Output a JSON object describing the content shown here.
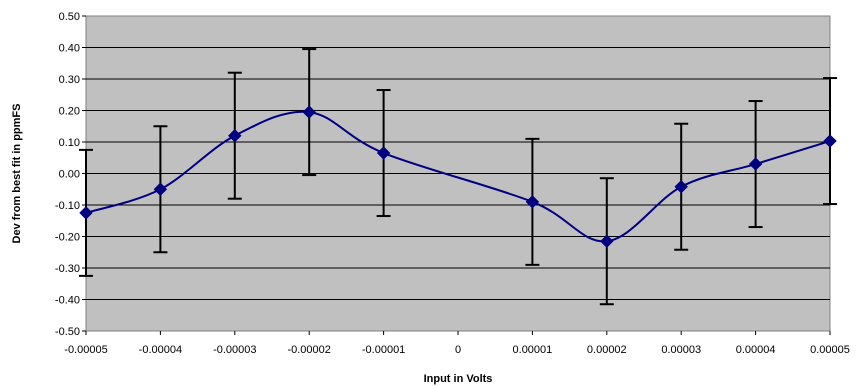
{
  "chart_data": {
    "type": "line",
    "title": "",
    "xlabel": "Input in Volts",
    "ylabel": "Dev from best fit in ppmFS",
    "xlim": [
      -5e-05,
      5e-05
    ],
    "ylim": [
      -0.5,
      0.5
    ],
    "grid": true,
    "legend": "none",
    "x_ticks": [
      "-0.00005",
      "-0.00004",
      "-0.00003",
      "-0.00002",
      "-0.00001",
      "0",
      "0.00001",
      "0.00002",
      "0.00003",
      "0.00004",
      "0.00005"
    ],
    "y_ticks": [
      "0.50",
      "0.40",
      "0.30",
      "0.20",
      "0.10",
      "0.00",
      "-0.10",
      "-0.20",
      "-0.30",
      "-0.40",
      "-0.50"
    ],
    "series": [
      {
        "x": [
          -5e-05,
          -4e-05,
          -3e-05,
          -2e-05,
          -1e-05,
          1e-05,
          2e-05,
          3e-05,
          4e-05,
          5e-05
        ],
        "y": [
          -0.125,
          -0.05,
          0.12,
          0.195,
          0.065,
          -0.09,
          -0.215,
          -0.042,
          0.03,
          0.103
        ],
        "error": 0.2,
        "marker": "diamond",
        "smooth": true
      }
    ],
    "colors": {
      "plot_background": "#c0c0c0",
      "line": "#000080",
      "marker": "#000080",
      "error_bar": "#000000",
      "grid": "#000000"
    }
  }
}
